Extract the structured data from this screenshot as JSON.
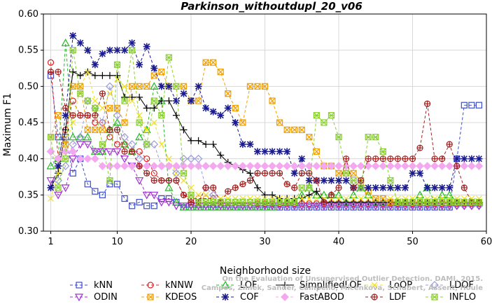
{
  "chart_data": {
    "type": "line",
    "title": "Parkinson_withoutdupl_20_v06",
    "xlabel": "Neighborhood size",
    "ylabel": "Maximum F1",
    "xlim": [
      0,
      60
    ],
    "ylim": [
      0.3,
      0.6
    ],
    "xticks": [
      1,
      10,
      20,
      30,
      40,
      50,
      60
    ],
    "yticks": [
      0.3,
      0.35,
      0.4,
      0.45,
      0.5,
      0.55,
      0.6
    ],
    "x": [
      1,
      2,
      3,
      4,
      5,
      6,
      7,
      8,
      9,
      10,
      11,
      12,
      13,
      14,
      15,
      16,
      17,
      18,
      19,
      20,
      21,
      22,
      23,
      24,
      25,
      26,
      27,
      28,
      29,
      30,
      31,
      32,
      33,
      34,
      35,
      36,
      37,
      38,
      39,
      40,
      41,
      42,
      43,
      44,
      45,
      46,
      47,
      48,
      49,
      50,
      51,
      52,
      53,
      54,
      55,
      56,
      57,
      58,
      59
    ],
    "series": [
      {
        "name": "kNN",
        "color": "#3a4bd0",
        "marker": "square",
        "line": "dash",
        "values": [
          0.515,
          0.43,
          0.43,
          0.38,
          0.4,
          0.365,
          0.355,
          0.35,
          0.365,
          0.365,
          0.345,
          0.335,
          0.34,
          0.335,
          0.335,
          0.345,
          0.345,
          0.34,
          0.333,
          0.333,
          0.333,
          0.333,
          0.333,
          0.333,
          0.333,
          0.333,
          0.333,
          0.333,
          0.333,
          0.333,
          0.333,
          0.333,
          0.333,
          0.333,
          0.333,
          0.333,
          0.333,
          0.333,
          0.333,
          0.333,
          0.333,
          0.333,
          0.333,
          0.333,
          0.333,
          0.333,
          0.333,
          0.333,
          0.333,
          0.333,
          0.333,
          0.333,
          0.333,
          0.333,
          0.333,
          0.4,
          0.474,
          0.474,
          0.474
        ]
      },
      {
        "name": "kNNW",
        "color": "#e02020",
        "marker": "circle",
        "line": "dash",
        "values": [
          0.533,
          0.4,
          0.44,
          0.48,
          0.46,
          0.46,
          0.45,
          0.45,
          0.43,
          0.42,
          0.42,
          0.41,
          0.41,
          0.4,
          0.38,
          0.37,
          0.37,
          0.37,
          0.35,
          0.345,
          0.345,
          0.345,
          0.345,
          0.34,
          0.34,
          0.34,
          0.34,
          0.34,
          0.338,
          0.338,
          0.338,
          0.338,
          0.338,
          0.338,
          0.338,
          0.338,
          0.338,
          0.338,
          0.338,
          0.338,
          0.338,
          0.338,
          0.338,
          0.338,
          0.338,
          0.338,
          0.338,
          0.338,
          0.338,
          0.338,
          0.338,
          0.338,
          0.338,
          0.338,
          0.338,
          0.338,
          0.338,
          0.338,
          0.338
        ]
      },
      {
        "name": "LOF",
        "color": "#22bb22",
        "marker": "triangle",
        "line": "dash",
        "values": [
          0.39,
          0.4,
          0.56,
          0.43,
          0.43,
          0.43,
          0.41,
          0.41,
          0.44,
          0.45,
          0.42,
          0.41,
          0.43,
          0.44,
          0.5,
          0.48,
          0.36,
          0.34,
          0.333,
          0.333,
          0.333,
          0.333,
          0.333,
          0.333,
          0.333,
          0.333,
          0.333,
          0.333,
          0.333,
          0.333,
          0.333,
          0.34,
          0.34,
          0.34,
          0.35,
          0.36,
          0.35,
          0.35,
          0.35,
          0.35,
          0.34,
          0.35,
          0.36,
          0.35,
          0.34,
          0.34,
          0.34,
          0.34,
          0.34,
          0.34,
          0.35,
          0.36,
          0.34,
          0.35,
          0.35,
          0.34,
          0.34,
          0.34,
          0.34
        ]
      },
      {
        "name": "SimplifiedLOF",
        "color": "#000000",
        "marker": "plus",
        "line": "solid",
        "values": [
          0.36,
          0.38,
          0.44,
          0.52,
          0.515,
          0.52,
          0.515,
          0.515,
          0.515,
          0.515,
          0.485,
          0.485,
          0.485,
          0.47,
          0.47,
          0.48,
          0.48,
          0.46,
          0.44,
          0.425,
          0.425,
          0.42,
          0.42,
          0.405,
          0.395,
          0.39,
          0.385,
          0.38,
          0.36,
          0.35,
          0.35,
          0.345,
          0.345,
          0.345,
          0.345,
          0.35,
          0.355,
          0.34,
          0.34,
          0.34,
          0.34,
          0.34,
          0.34,
          0.34,
          0.34,
          0.34,
          0.34,
          0.34,
          0.34,
          0.34,
          0.34,
          0.34,
          0.34,
          0.34,
          0.34,
          0.34,
          0.34,
          0.34,
          0.34
        ]
      },
      {
        "name": "LoOP",
        "color": "#f2e01a",
        "marker": "cross",
        "line": "dash",
        "values": [
          0.345,
          0.38,
          0.42,
          0.45,
          0.5,
          0.52,
          0.48,
          0.47,
          0.49,
          0.51,
          0.5,
          0.48,
          0.46,
          0.44,
          0.45,
          0.42,
          0.4,
          0.38,
          0.37,
          0.36,
          0.35,
          0.35,
          0.345,
          0.345,
          0.345,
          0.345,
          0.345,
          0.345,
          0.345,
          0.345,
          0.345,
          0.345,
          0.345,
          0.345,
          0.345,
          0.345,
          0.345,
          0.345,
          0.345,
          0.345,
          0.345,
          0.345,
          0.345,
          0.345,
          0.345,
          0.345,
          0.345,
          0.345,
          0.345,
          0.345,
          0.345,
          0.345,
          0.345,
          0.345,
          0.345,
          0.345,
          0.345,
          0.345,
          0.345
        ]
      },
      {
        "name": "LDOF",
        "color": "#9a9ad8",
        "marker": "diamond",
        "line": "dash",
        "values": [
          0.41,
          0.37,
          0.39,
          0.42,
          0.43,
          0.48,
          0.47,
          0.45,
          0.5,
          0.46,
          0.43,
          0.42,
          0.4,
          0.42,
          0.42,
          0.39,
          0.39,
          0.38,
          0.4,
          0.4,
          0.4,
          0.36,
          0.35,
          0.34,
          0.335,
          0.335,
          0.335,
          0.335,
          0.335,
          0.335,
          0.335,
          0.335,
          0.335,
          0.335,
          0.335,
          0.335,
          0.335,
          0.335,
          0.335,
          0.335,
          0.335,
          0.335,
          0.335,
          0.335,
          0.335,
          0.335,
          0.335,
          0.335,
          0.335,
          0.335,
          0.335,
          0.335,
          0.335,
          0.335,
          0.335,
          0.335,
          0.335,
          0.335,
          0.335
        ]
      },
      {
        "name": "ODIN",
        "color": "#a030d0",
        "marker": "triangle-down",
        "line": "dash",
        "values": [
          0.37,
          0.35,
          0.36,
          0.4,
          0.42,
          0.42,
          0.41,
          0.41,
          0.41,
          0.41,
          0.4,
          0.39,
          0.37,
          0.35,
          0.35,
          0.34,
          0.34,
          0.335,
          0.335,
          0.335,
          0.335,
          0.335,
          0.335,
          0.335,
          0.335,
          0.335,
          0.335,
          0.335,
          0.335,
          0.335,
          0.335,
          0.335,
          0.335,
          0.335,
          0.335,
          0.335,
          0.335,
          0.335,
          0.335,
          0.335,
          0.335,
          0.335,
          0.335,
          0.335,
          0.335,
          0.335,
          0.335,
          0.335,
          0.335,
          0.335,
          0.335,
          0.335,
          0.335,
          0.335,
          0.335,
          0.335,
          0.335,
          0.335,
          0.335
        ]
      },
      {
        "name": "KDEOS",
        "color": "#f0a000",
        "marker": "square-x",
        "line": "dash",
        "values": [
          0.43,
          0.46,
          0.42,
          0.5,
          0.5,
          0.44,
          0.44,
          0.44,
          0.47,
          0.47,
          0.45,
          0.5,
          0.5,
          0.5,
          0.515,
          0.52,
          0.5,
          0.5,
          0.5,
          0.48,
          0.48,
          0.533,
          0.533,
          0.52,
          0.49,
          0.47,
          0.45,
          0.5,
          0.5,
          0.5,
          0.48,
          0.45,
          0.44,
          0.44,
          0.44,
          0.43,
          0.41,
          0.39,
          0.39,
          0.38,
          0.38,
          0.38,
          0.37,
          0.355,
          0.345,
          0.345,
          0.34,
          0.34,
          0.34,
          0.34,
          0.34,
          0.34,
          0.34,
          0.34,
          0.34,
          0.34,
          0.34,
          0.34,
          0.34
        ]
      },
      {
        "name": "COF",
        "color": "#1a1a90",
        "marker": "star",
        "line": "dash",
        "values": [
          0.36,
          0.39,
          0.46,
          0.57,
          0.56,
          0.55,
          0.53,
          0.545,
          0.55,
          0.55,
          0.55,
          0.56,
          0.53,
          0.555,
          0.525,
          0.5,
          0.5,
          0.48,
          0.49,
          0.48,
          0.5,
          0.47,
          0.465,
          0.46,
          0.47,
          0.45,
          0.42,
          0.42,
          0.41,
          0.41,
          0.41,
          0.41,
          0.41,
          0.38,
          0.4,
          0.37,
          0.37,
          0.37,
          0.37,
          0.37,
          0.37,
          0.36,
          0.36,
          0.36,
          0.36,
          0.36,
          0.36,
          0.36,
          0.36,
          0.38,
          0.38,
          0.36,
          0.36,
          0.36,
          0.36,
          0.4,
          0.4,
          0.4,
          0.4
        ]
      },
      {
        "name": "FastABOD",
        "color": "#f4a8f0",
        "marker": "diamond-filled",
        "line": "dash",
        "values": [
          0.41,
          0.4,
          0.41,
          0.41,
          0.4,
          0.4,
          0.4,
          0.39,
          0.39,
          0.39,
          0.39,
          0.39,
          0.39,
          0.39,
          0.39,
          0.39,
          0.39,
          0.39,
          0.39,
          0.39,
          0.39,
          0.39,
          0.39,
          0.39,
          0.39,
          0.39,
          0.39,
          0.39,
          0.39,
          0.39,
          0.39,
          0.39,
          0.39,
          0.39,
          0.39,
          0.39,
          0.39,
          0.39,
          0.39,
          0.39,
          0.39,
          0.39,
          0.39,
          0.39,
          0.39,
          0.39,
          0.39,
          0.39,
          0.39,
          0.39,
          0.39,
          0.39,
          0.39,
          0.39,
          0.39,
          0.39,
          0.39,
          0.39,
          0.39
        ]
      },
      {
        "name": "LDF",
        "color": "#a02020",
        "marker": "circle-plus",
        "line": "dash",
        "values": [
          0.52,
          0.52,
          0.47,
          0.46,
          0.46,
          0.46,
          0.46,
          0.49,
          0.44,
          0.44,
          0.41,
          0.41,
          0.39,
          0.38,
          0.37,
          0.37,
          0.37,
          0.37,
          0.35,
          0.34,
          0.34,
          0.36,
          0.36,
          0.34,
          0.355,
          0.36,
          0.365,
          0.37,
          0.38,
          0.38,
          0.38,
          0.38,
          0.365,
          0.36,
          0.38,
          0.38,
          0.37,
          0.34,
          0.35,
          0.36,
          0.4,
          0.36,
          0.37,
          0.4,
          0.4,
          0.4,
          0.4,
          0.4,
          0.4,
          0.4,
          0.415,
          0.476,
          0.4,
          0.4,
          0.42,
          0.39,
          0.36,
          0.34,
          0.34
        ]
      },
      {
        "name": "INFLO",
        "color": "#8ad030",
        "marker": "square-star",
        "line": "dash",
        "values": [
          0.43,
          0.36,
          0.4,
          0.55,
          0.49,
          0.48,
          0.47,
          0.42,
          0.37,
          0.53,
          0.48,
          0.55,
          0.45,
          0.42,
          0.48,
          0.46,
          0.54,
          0.5,
          0.38,
          0.35,
          0.34,
          0.34,
          0.34,
          0.34,
          0.34,
          0.34,
          0.34,
          0.34,
          0.34,
          0.34,
          0.34,
          0.34,
          0.34,
          0.34,
          0.36,
          0.36,
          0.46,
          0.45,
          0.46,
          0.43,
          0.38,
          0.37,
          0.36,
          0.43,
          0.43,
          0.41,
          0.37,
          0.34,
          0.34,
          0.34,
          0.34,
          0.34,
          0.34,
          0.34,
          0.34,
          0.34,
          0.34,
          0.34,
          0.34
        ]
      }
    ],
    "legend_order": [
      [
        "kNN",
        "kNNW",
        "LOF",
        "SimplifiedLOF",
        "LoOP",
        "LDOF"
      ],
      [
        "ODIN",
        "KDEOS",
        "COF",
        "FastABOD",
        "LDF",
        "INFLO"
      ]
    ],
    "legend_position": "bottom",
    "watermark": {
      "line1": "Campos, Zimek, Sander, Campello, Micenkova, Schubert, Assent, Houle",
      "line2": "On the Evaluation of Unsupervised Outlier Detection. DAMI, 2015."
    }
  }
}
